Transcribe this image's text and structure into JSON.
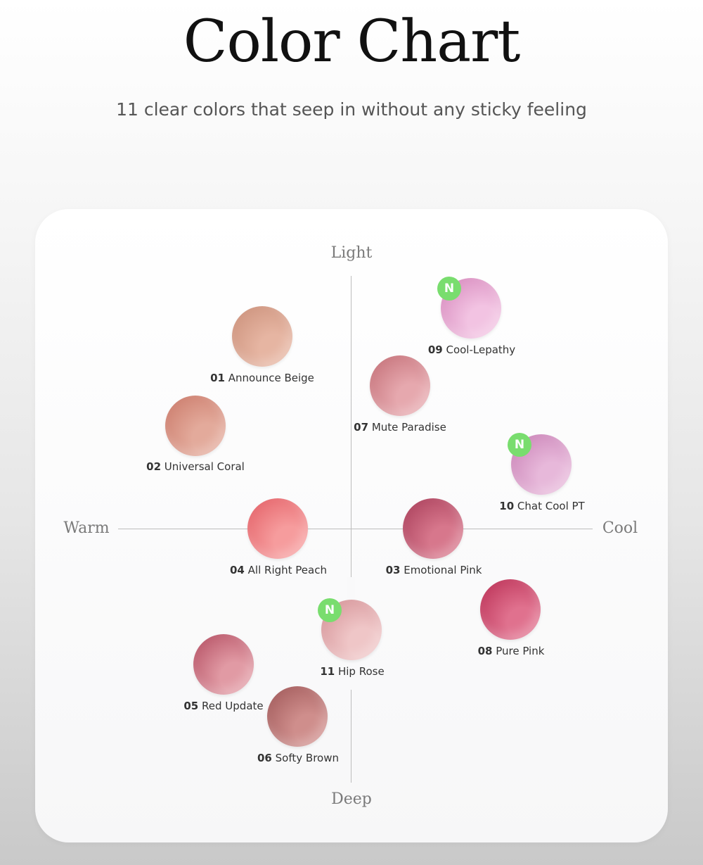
{
  "header": {
    "title": "Color Chart",
    "subtitle": "11 clear colors that seep in without any sticky feeling"
  },
  "axes": {
    "top": "Light",
    "bottom": "Deep",
    "left": "Warm",
    "right": "Cool"
  },
  "badge_label": "N",
  "colors": [
    {
      "number": "01",
      "name": "Announce Beige",
      "color_a": "#c98e78",
      "color_b": "#e6b5a2",
      "is_new": false
    },
    {
      "number": "02",
      "name": "Universal Coral",
      "color_a": "#c97767",
      "color_b": "#e3aa9b",
      "is_new": false
    },
    {
      "number": "03",
      "name": "Emotional Pink",
      "color_a": "#a63b57",
      "color_b": "#d7778c",
      "is_new": false
    },
    {
      "number": "04",
      "name": "All Right Peach",
      "color_a": "#e25c63",
      "color_b": "#f69c9d",
      "is_new": false
    },
    {
      "number": "05",
      "name": "Red Update",
      "color_a": "#b14a5e",
      "color_b": "#e19aa4",
      "is_new": false
    },
    {
      "number": "06",
      "name": "Softy Brown",
      "color_a": "#9d5556",
      "color_b": "#cf8e8c",
      "is_new": false
    },
    {
      "number": "07",
      "name": "Mute Paradise",
      "color_a": "#c16b73",
      "color_b": "#e6a8ae",
      "is_new": false
    },
    {
      "number": "08",
      "name": "Pure Pink",
      "color_a": "#b82c52",
      "color_b": "#e0718e",
      "is_new": false
    },
    {
      "number": "09",
      "name": "Cool-Lepathy",
      "color_a": "#d483b9",
      "color_b": "#f2c3e2",
      "is_new": true
    },
    {
      "number": "10",
      "name": "Chat Cool PT",
      "color_a": "#c77db3",
      "color_b": "#e7b8da",
      "is_new": true
    },
    {
      "number": "11",
      "name": "Hip Rose",
      "color_a": "#d28d92",
      "color_b": "#efc6c7",
      "is_new": true
    }
  ]
}
